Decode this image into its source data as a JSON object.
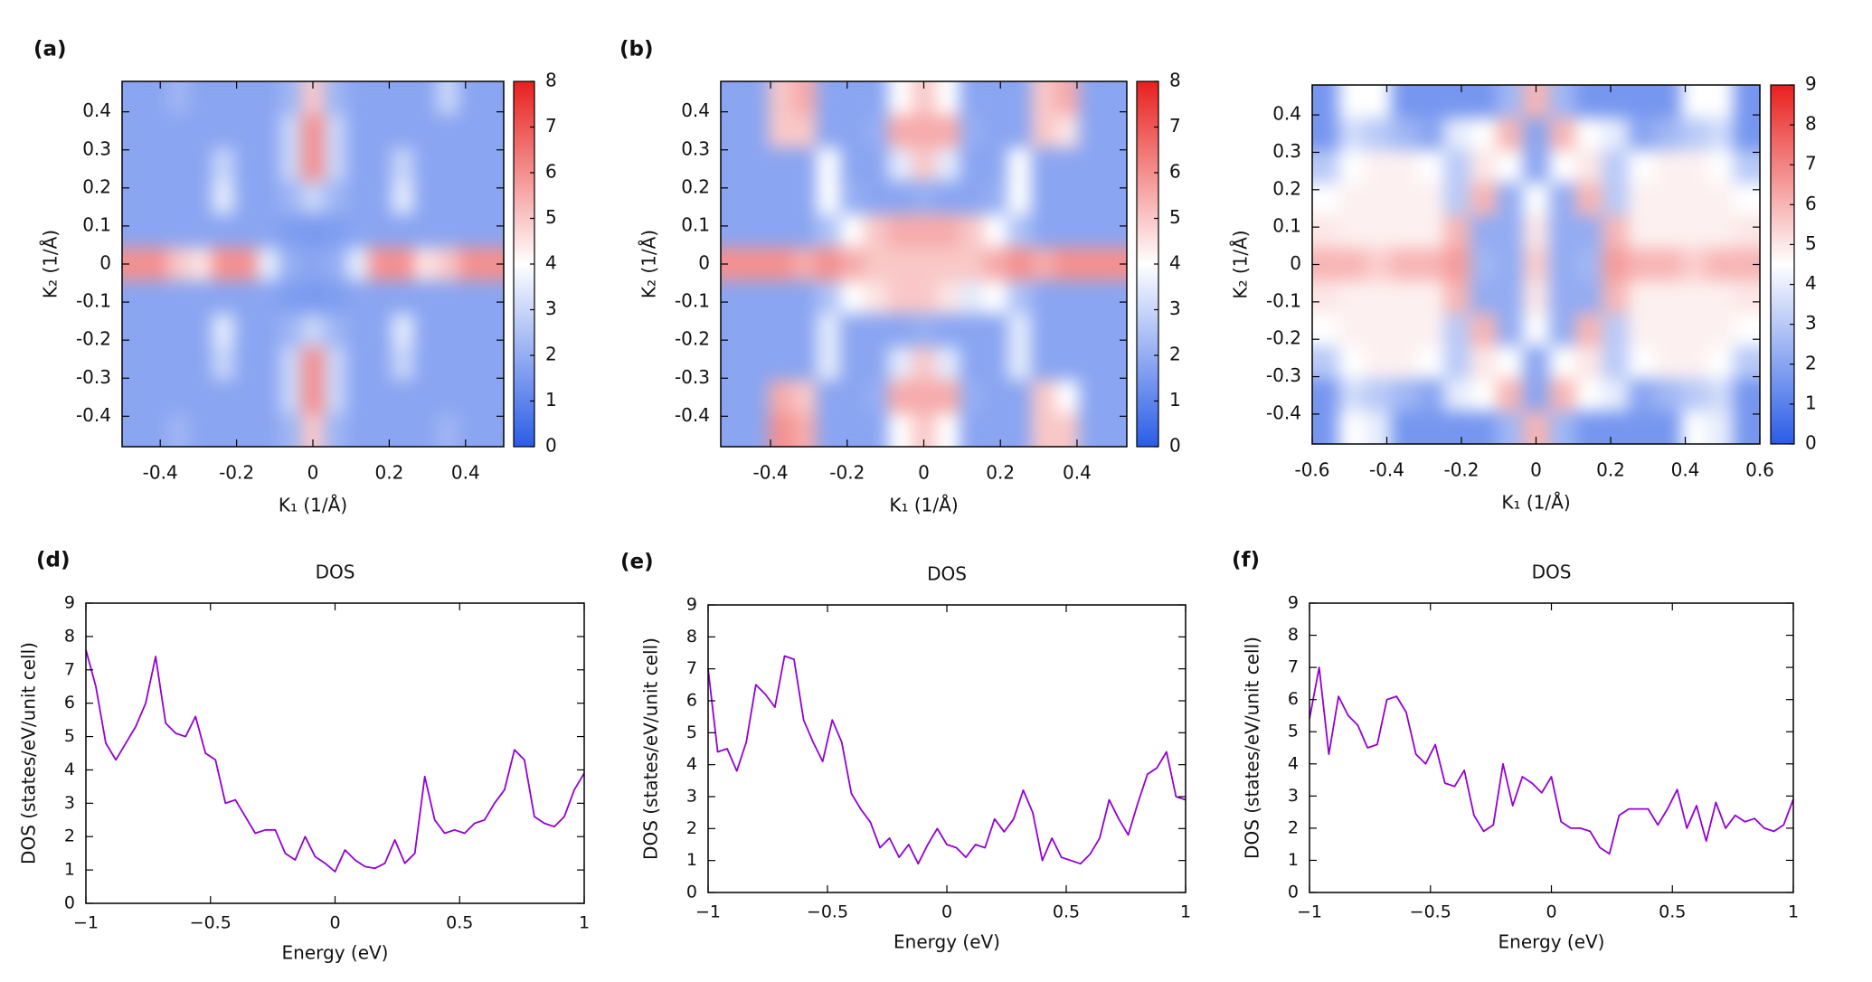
{
  "chart_data": [
    {
      "type": "heatmap",
      "label": "(a)",
      "xlabel": "K₁ (1/Å)",
      "ylabel": "K₂ (1/Å)",
      "xlim": [
        -0.5,
        0.5
      ],
      "ylim": [
        -0.48,
        0.48
      ],
      "xticks": [
        -0.4,
        -0.2,
        0,
        0.2,
        0.4
      ],
      "yticks": [
        -0.4,
        -0.3,
        -0.2,
        -0.1,
        0,
        0.1,
        0.2,
        0.3,
        0.4
      ],
      "zlim": [
        0,
        8
      ],
      "zticks": [
        0,
        1,
        2,
        3,
        4,
        5,
        6,
        7,
        8
      ],
      "colormap": [
        "#2a5ce6",
        "#ffffff",
        "#e8201e"
      ],
      "z": [
        [
          1.8,
          1.8,
          2.2,
          1.8,
          1.8,
          1.8,
          1.8,
          2.2,
          5,
          2.2,
          1.8,
          1.8,
          1.8,
          1.8,
          3,
          1.8,
          1.8
        ],
        [
          1.8,
          1.8,
          1.8,
          1.8,
          1.8,
          1.8,
          1.8,
          3,
          6,
          3,
          1.8,
          1.8,
          1.8,
          1.8,
          1.8,
          1.8,
          1.8
        ],
        [
          1.8,
          1.8,
          1.8,
          1.8,
          3,
          1.8,
          1.8,
          3,
          6,
          3,
          1.8,
          1.8,
          3,
          1.8,
          1.8,
          1.8,
          1.8
        ],
        [
          1.8,
          1.8,
          1.8,
          1.8,
          3.5,
          1.8,
          1.8,
          2.2,
          3,
          2.2,
          1.8,
          1.8,
          3.5,
          1.8,
          1.8,
          1.8,
          1.8
        ],
        [
          1.8,
          1.8,
          1.8,
          1.8,
          1.8,
          1.8,
          1.8,
          1.6,
          1.5,
          1.6,
          1.8,
          1.8,
          1.8,
          1.8,
          1.8,
          1.8,
          1.8
        ],
        [
          6,
          6,
          5,
          4.5,
          6,
          6,
          3.5,
          2,
          1.8,
          2,
          3.5,
          6,
          6,
          4.5,
          5,
          6,
          6
        ],
        [
          1.8,
          1.8,
          1.8,
          1.8,
          1.8,
          1.8,
          1.8,
          1.6,
          1.5,
          1.6,
          1.8,
          1.8,
          1.8,
          1.8,
          1.8,
          1.8,
          1.8
        ],
        [
          1.8,
          1.8,
          1.8,
          1.8,
          3.5,
          1.8,
          1.8,
          2.2,
          3,
          2.2,
          1.8,
          1.8,
          3.5,
          1.8,
          1.8,
          1.8,
          1.8
        ],
        [
          1.8,
          1.8,
          1.8,
          1.8,
          3,
          1.8,
          1.8,
          3,
          6,
          3,
          1.8,
          1.8,
          3,
          1.8,
          1.8,
          1.8,
          1.8
        ],
        [
          1.8,
          1.8,
          1.8,
          1.8,
          1.8,
          1.8,
          1.8,
          3,
          6,
          3,
          1.8,
          1.8,
          1.8,
          1.8,
          1.8,
          1.8,
          1.8
        ],
        [
          1.8,
          1.8,
          2.2,
          1.8,
          1.8,
          1.8,
          1.8,
          2.2,
          5,
          2.2,
          1.8,
          1.8,
          1.8,
          1.8,
          2.2,
          1.8,
          1.8
        ]
      ]
    },
    {
      "type": "heatmap",
      "label": "(b)",
      "xlabel": "K₁ (1/Å)",
      "ylabel": "K₂ (1/Å)",
      "xlim": [
        -0.53,
        0.53
      ],
      "ylim": [
        -0.48,
        0.48
      ],
      "xticks": [
        -0.4,
        -0.2,
        0,
        0.2,
        0.4
      ],
      "yticks": [
        -0.4,
        -0.3,
        -0.2,
        -0.1,
        0,
        0.1,
        0.2,
        0.3,
        0.4
      ],
      "zlim": [
        0,
        8
      ],
      "zticks": [
        0,
        1,
        2,
        3,
        4,
        5,
        6,
        7,
        8
      ],
      "colormap": [
        "#2a5ce6",
        "#ffffff",
        "#e8201e"
      ],
      "z": [
        [
          1.8,
          1.8,
          5,
          5.5,
          1.8,
          1.8,
          1.8,
          4,
          5,
          4,
          1.8,
          1.8,
          1.8,
          5,
          5.5,
          1.8,
          1.8
        ],
        [
          1.8,
          1.8,
          5,
          5,
          1.8,
          1.8,
          2,
          5.5,
          5.5,
          5.5,
          2,
          1.8,
          1.8,
          5,
          4.5,
          1.8,
          1.8
        ],
        [
          1.8,
          1.8,
          1.8,
          1.8,
          4,
          1.8,
          1.8,
          3.5,
          5,
          3.5,
          1.8,
          1.8,
          4,
          1.8,
          1.8,
          1.8,
          1.8
        ],
        [
          1.8,
          1.8,
          1.8,
          1.8,
          4,
          2,
          1.8,
          1.8,
          2,
          1.8,
          1.8,
          2,
          4,
          1.8,
          1.8,
          1.8,
          1.8
        ],
        [
          1.8,
          1.8,
          1.8,
          1.8,
          2.5,
          4,
          5,
          5.5,
          5.5,
          5.5,
          5,
          4,
          2.5,
          1.8,
          1.8,
          1.8,
          1.8
        ],
        [
          6,
          6,
          6,
          5.5,
          6,
          5.5,
          5,
          5,
          5,
          5,
          5,
          5.5,
          6,
          5.5,
          6,
          6,
          6
        ],
        [
          1.8,
          1.8,
          1.8,
          1.8,
          2.5,
          4,
          4.5,
          5,
          5,
          4.5,
          3.5,
          4,
          2.5,
          1.8,
          1.8,
          1.8,
          1.8
        ],
        [
          1.8,
          1.8,
          1.8,
          1.8,
          3.5,
          1.8,
          1.8,
          1.8,
          2,
          1.8,
          1.8,
          1.8,
          3.5,
          1.8,
          1.8,
          1.8,
          1.8
        ],
        [
          1.8,
          1.8,
          1.8,
          1.8,
          3.5,
          1.8,
          1.8,
          3.5,
          5,
          3.5,
          1.8,
          1.8,
          3.5,
          1.8,
          1.8,
          1.8,
          1.8
        ],
        [
          1.8,
          1.8,
          5.5,
          5,
          1.8,
          1.8,
          2,
          5.5,
          5.5,
          5.5,
          2,
          1.8,
          1.8,
          5,
          4,
          1.8,
          1.8
        ],
        [
          1.8,
          1.8,
          6,
          5.5,
          1.8,
          1.8,
          1.8,
          4,
          5,
          4,
          1.8,
          1.8,
          1.8,
          5,
          5,
          1.8,
          1.8
        ]
      ]
    },
    {
      "type": "heatmap",
      "xlabel": "K₁ (1/Å)",
      "ylabel": "K₂ (1/Å)",
      "xlim": [
        -0.6,
        0.6
      ],
      "ylim": [
        -0.48,
        0.48
      ],
      "xticks": [
        -0.6,
        -0.4,
        -0.2,
        0,
        0.2,
        0.4,
        0.6
      ],
      "yticks": [
        -0.4,
        -0.3,
        -0.2,
        -0.1,
        0,
        0.1,
        0.2,
        0.3,
        0.4
      ],
      "zlim": [
        0,
        9
      ],
      "zticks": [
        0,
        1,
        2,
        3,
        4,
        5,
        6,
        7,
        8,
        9
      ],
      "colormap": [
        "#2a5ce6",
        "#ffffff",
        "#e8201e"
      ],
      "z": [
        [
          1.6,
          4.5,
          4.5,
          1.6,
          1.6,
          1.6,
          1.6,
          2.5,
          6,
          2.5,
          1.6,
          1.6,
          1.6,
          1.6,
          4.5,
          4.5,
          1.6
        ],
        [
          1.6,
          3.5,
          3,
          2.5,
          2,
          4,
          4.5,
          6,
          2,
          6,
          4.5,
          4,
          2,
          2.5,
          3,
          3.5,
          1.6
        ],
        [
          3,
          4.5,
          4.8,
          4.8,
          4.5,
          3,
          5,
          4.5,
          2,
          4.5,
          5,
          3,
          4.5,
          4.8,
          4.8,
          4.5,
          3
        ],
        [
          4.5,
          4.8,
          4.8,
          4.8,
          4.8,
          3,
          6,
          2.2,
          4.5,
          2.2,
          6,
          3,
          4.8,
          4.8,
          4.8,
          4.8,
          4.5
        ],
        [
          5,
          4.8,
          4.8,
          4.8,
          4.8,
          6,
          2.2,
          2.2,
          5,
          2.2,
          2.2,
          6,
          4.8,
          4.8,
          4.8,
          4.8,
          5
        ],
        [
          6,
          6,
          5.5,
          6,
          6,
          6.5,
          2.5,
          2.2,
          5.5,
          2.2,
          2.5,
          6.5,
          6,
          6,
          5.5,
          6,
          6
        ],
        [
          5,
          4.8,
          4.8,
          4.8,
          4.8,
          6,
          2.2,
          2.2,
          5,
          2.2,
          2.2,
          6,
          4.8,
          4.8,
          4.8,
          4.8,
          5
        ],
        [
          4.5,
          4.8,
          4.8,
          4.8,
          4.8,
          3,
          6,
          2.2,
          4.5,
          2.2,
          6,
          3,
          4.8,
          4.8,
          4.8,
          4.8,
          4.5
        ],
        [
          3,
          4.5,
          4.8,
          4.8,
          4.5,
          3,
          5,
          4.5,
          2,
          4.5,
          5,
          3,
          4.5,
          4.8,
          4.8,
          4.5,
          3
        ],
        [
          1.6,
          3.5,
          3,
          2.5,
          2,
          4,
          4.5,
          6,
          2,
          6,
          4.5,
          4,
          2,
          2.5,
          3,
          3.5,
          1.6
        ],
        [
          1.6,
          4.5,
          4,
          1.6,
          1.6,
          1.6,
          1.6,
          2.5,
          6,
          2.5,
          1.6,
          1.6,
          1.6,
          1.6,
          4.5,
          4,
          1.6
        ]
      ]
    },
    {
      "type": "line",
      "label": "(d)",
      "title": "DOS",
      "xlabel": "Energy (eV)",
      "ylabel": "DOS (states/eV/unit cell)",
      "xlim": [
        -1,
        1
      ],
      "ylim": [
        0,
        9
      ],
      "xticks": [
        {
          "value": -1,
          "label": "−1"
        },
        {
          "value": -0.5,
          "label": "−0.5"
        },
        0,
        0.5,
        1
      ],
      "yticks": [
        0,
        1,
        2,
        3,
        4,
        5,
        6,
        7,
        8,
        9
      ],
      "x": [
        -1,
        -0.96,
        -0.92,
        -0.88,
        -0.84,
        -0.8,
        -0.76,
        -0.72,
        -0.68,
        -0.64,
        -0.6,
        -0.56,
        -0.52,
        -0.48,
        -0.44,
        -0.4,
        -0.36,
        -0.32,
        -0.28,
        -0.24,
        -0.2,
        -0.16,
        -0.12,
        -0.08,
        -0.04,
        0,
        0.04,
        0.08,
        0.12,
        0.16,
        0.2,
        0.24,
        0.28,
        0.32,
        0.36,
        0.4,
        0.44,
        0.48,
        0.52,
        0.56,
        0.6,
        0.64,
        0.68,
        0.72,
        0.76,
        0.8,
        0.84,
        0.88,
        0.92,
        0.96,
        1
      ],
      "series": [
        {
          "color": "#9400d3",
          "values": [
            7.6,
            6.5,
            4.8,
            4.3,
            4.8,
            5.3,
            6.0,
            7.4,
            5.4,
            5.1,
            5.0,
            5.6,
            4.5,
            4.3,
            3.0,
            3.1,
            2.6,
            2.1,
            2.2,
            2.2,
            1.5,
            1.3,
            2.0,
            1.4,
            1.2,
            0.95,
            1.6,
            1.3,
            1.1,
            1.05,
            1.2,
            1.9,
            1.2,
            1.5,
            3.8,
            2.5,
            2.1,
            2.2,
            2.1,
            2.4,
            2.5,
            3.0,
            3.4,
            4.6,
            4.3,
            2.6,
            2.4,
            2.3,
            2.6,
            3.4,
            3.9
          ]
        }
      ]
    },
    {
      "type": "line",
      "label": "(e)",
      "title": "DOS",
      "xlabel": "Energy (eV)",
      "ylabel": "DOS (states/eV/unit cell)",
      "xlim": [
        -1,
        1
      ],
      "ylim": [
        0,
        9
      ],
      "xticks": [
        {
          "value": -1,
          "label": "−1"
        },
        {
          "value": -0.5,
          "label": "−0.5"
        },
        0,
        0.5,
        1
      ],
      "yticks": [
        0,
        1,
        2,
        3,
        4,
        5,
        6,
        7,
        8,
        9
      ],
      "x": [
        -1,
        -0.96,
        -0.92,
        -0.88,
        -0.84,
        -0.8,
        -0.76,
        -0.72,
        -0.68,
        -0.64,
        -0.6,
        -0.56,
        -0.52,
        -0.48,
        -0.44,
        -0.4,
        -0.36,
        -0.32,
        -0.28,
        -0.24,
        -0.2,
        -0.16,
        -0.12,
        -0.08,
        -0.04,
        0,
        0.04,
        0.08,
        0.12,
        0.16,
        0.2,
        0.24,
        0.28,
        0.32,
        0.36,
        0.4,
        0.44,
        0.48,
        0.52,
        0.56,
        0.6,
        0.64,
        0.68,
        0.72,
        0.76,
        0.8,
        0.84,
        0.88,
        0.92,
        0.96,
        1
      ],
      "series": [
        {
          "color": "#9400d3",
          "values": [
            7.0,
            4.4,
            4.5,
            3.8,
            4.7,
            6.5,
            6.2,
            5.8,
            7.4,
            7.3,
            5.4,
            4.7,
            4.1,
            5.4,
            4.7,
            3.1,
            2.6,
            2.2,
            1.4,
            1.7,
            1.1,
            1.5,
            0.9,
            1.5,
            2.0,
            1.5,
            1.4,
            1.1,
            1.5,
            1.4,
            2.3,
            1.9,
            2.3,
            3.2,
            2.5,
            1.0,
            1.7,
            1.1,
            1.0,
            0.9,
            1.2,
            1.7,
            2.9,
            2.3,
            1.8,
            2.8,
            3.7,
            3.9,
            4.4,
            3.0,
            2.9
          ]
        }
      ]
    },
    {
      "type": "line",
      "label": "(f)",
      "title": "DOS",
      "xlabel": "Energy (eV)",
      "ylabel": "DOS (states/eV/unit cell)",
      "xlim": [
        -1,
        1
      ],
      "ylim": [
        0,
        9
      ],
      "xticks": [
        {
          "value": -1,
          "label": "−1"
        },
        {
          "value": -0.5,
          "label": "−0.5"
        },
        0,
        0.5,
        1
      ],
      "yticks": [
        0,
        1,
        2,
        3,
        4,
        5,
        6,
        7,
        8,
        9
      ],
      "x": [
        -1,
        -0.96,
        -0.92,
        -0.88,
        -0.84,
        -0.8,
        -0.76,
        -0.72,
        -0.68,
        -0.64,
        -0.6,
        -0.56,
        -0.52,
        -0.48,
        -0.44,
        -0.4,
        -0.36,
        -0.32,
        -0.28,
        -0.24,
        -0.2,
        -0.16,
        -0.12,
        -0.08,
        -0.04,
        0,
        0.04,
        0.08,
        0.12,
        0.16,
        0.2,
        0.24,
        0.28,
        0.32,
        0.36,
        0.4,
        0.44,
        0.48,
        0.52,
        0.56,
        0.6,
        0.64,
        0.68,
        0.72,
        0.76,
        0.8,
        0.84,
        0.88,
        0.92,
        0.96,
        1
      ],
      "series": [
        {
          "color": "#9400d3",
          "values": [
            5.4,
            7.0,
            4.3,
            6.1,
            5.5,
            5.2,
            4.5,
            4.6,
            6.0,
            6.1,
            5.6,
            4.3,
            4.0,
            4.6,
            3.4,
            3.3,
            3.8,
            2.4,
            1.9,
            2.1,
            4.0,
            2.7,
            3.6,
            3.4,
            3.1,
            3.6,
            2.2,
            2.0,
            2.0,
            1.9,
            1.4,
            1.2,
            2.4,
            2.6,
            2.6,
            2.6,
            2.1,
            2.6,
            3.2,
            2.0,
            2.7,
            1.6,
            2.8,
            2.0,
            2.4,
            2.2,
            2.3,
            2.0,
            1.9,
            2.1,
            2.9
          ]
        }
      ]
    }
  ]
}
